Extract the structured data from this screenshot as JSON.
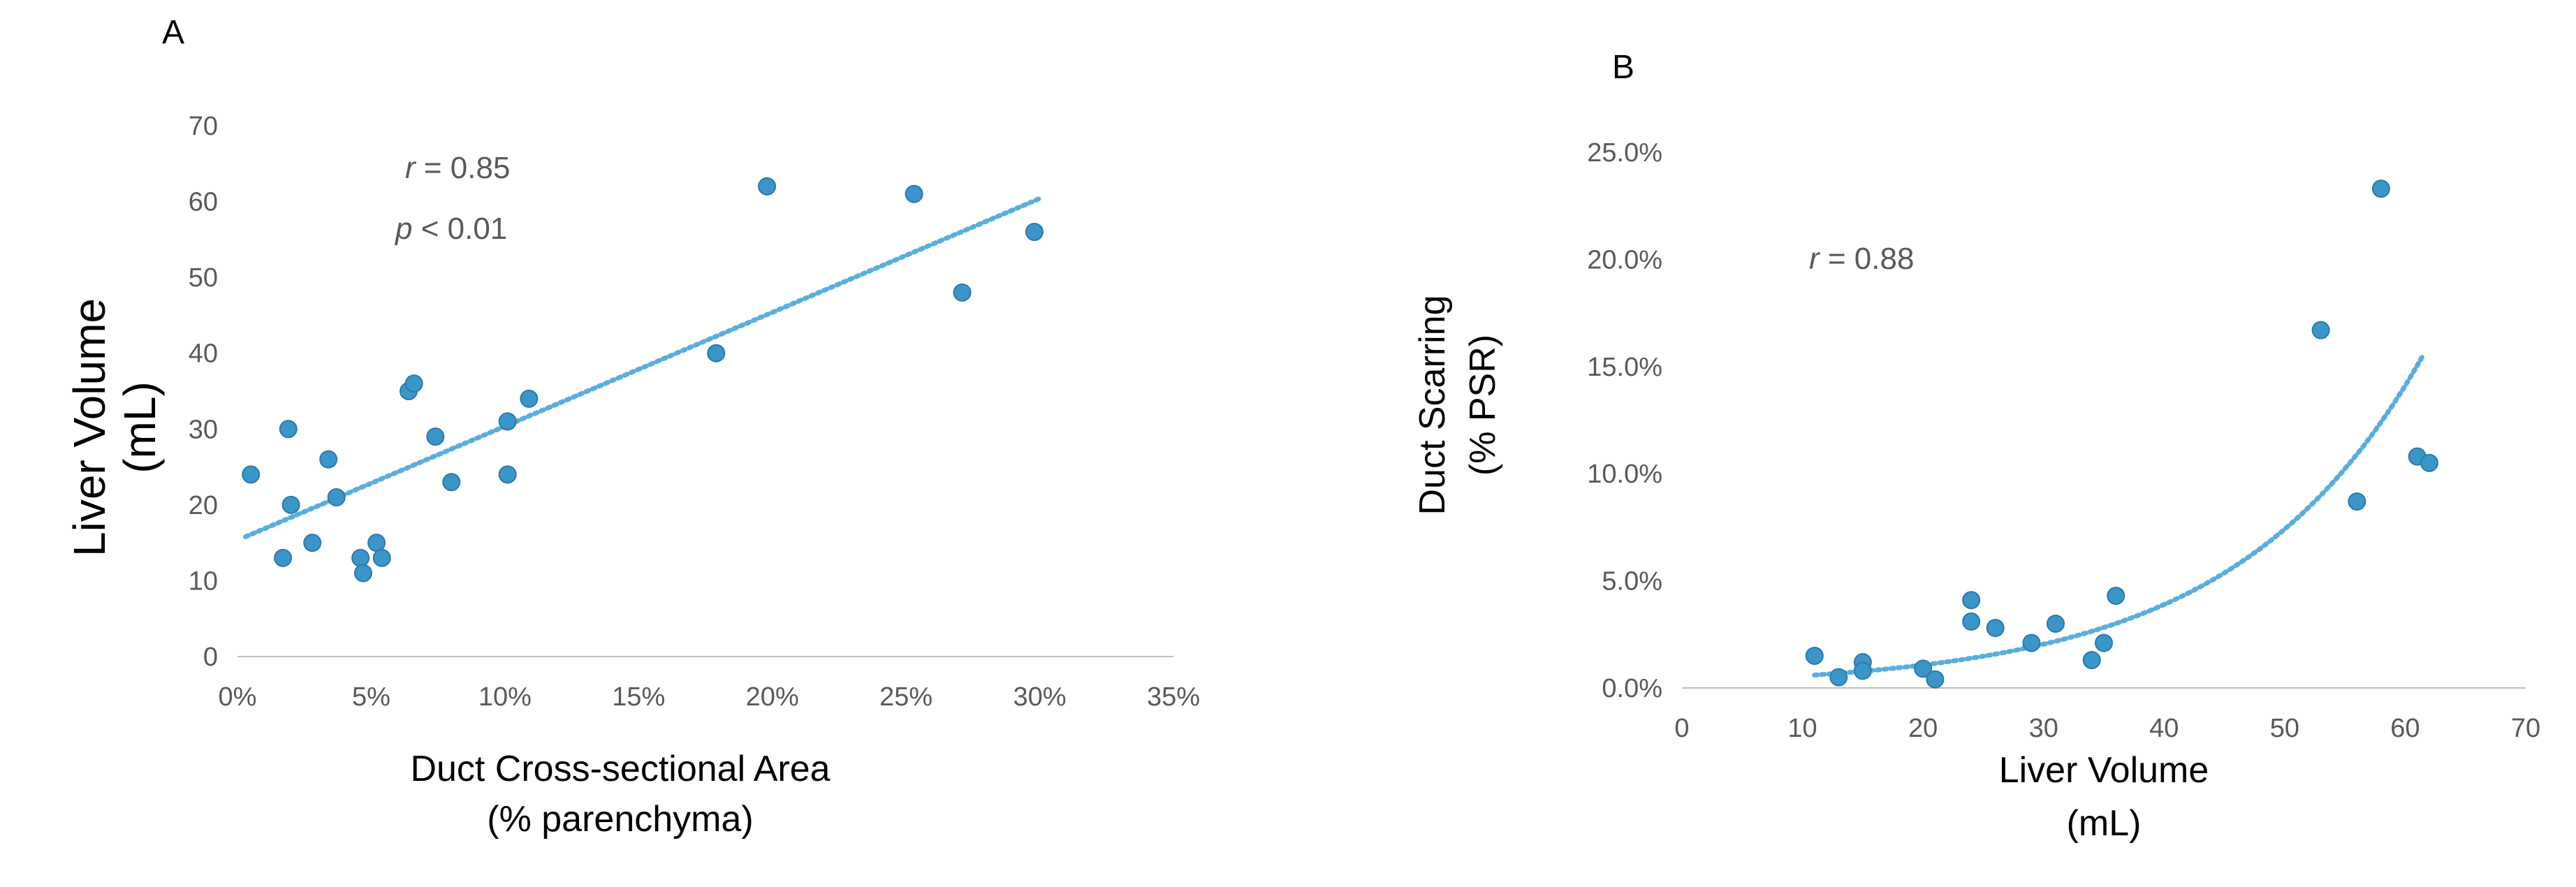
{
  "chart_data": [
    {
      "type": "scatter",
      "panel_label": "A",
      "xlabel_lines": [
        "Duct Cross-sectional Area",
        "(% parenchyma)"
      ],
      "ylabel_lines": [
        "Liver Volume",
        "(mL)"
      ],
      "xlim": [
        0,
        0.35
      ],
      "ylim": [
        0,
        70
      ],
      "xticks": [
        0,
        0.05,
        0.1,
        0.15,
        0.2,
        0.25,
        0.3,
        0.35
      ],
      "xtick_labels": [
        "0%",
        "5%",
        "10%",
        "15%",
        "20%",
        "25%",
        "30%",
        "35%"
      ],
      "yticks": [
        0,
        10,
        20,
        30,
        40,
        50,
        60,
        70
      ],
      "ytick_labels": [
        "0",
        "10",
        "20",
        "30",
        "40",
        "50",
        "60",
        "70"
      ],
      "grid": false,
      "annotation": {
        "line1": {
          "var": "r",
          "text": " = 0.85"
        },
        "line2": {
          "var": "p",
          "text": "  < 0.01"
        }
      },
      "trendline": {
        "type": "linear",
        "style": "dotted",
        "x_start": 0.003,
        "y_start": 15.8,
        "x_end": 0.3,
        "y_end": 60.4
      },
      "points": [
        {
          "x": 0.005,
          "y": 24
        },
        {
          "x": 0.017,
          "y": 13
        },
        {
          "x": 0.019,
          "y": 30
        },
        {
          "x": 0.02,
          "y": 20
        },
        {
          "x": 0.028,
          "y": 15
        },
        {
          "x": 0.034,
          "y": 26
        },
        {
          "x": 0.037,
          "y": 21
        },
        {
          "x": 0.046,
          "y": 13
        },
        {
          "x": 0.047,
          "y": 11
        },
        {
          "x": 0.052,
          "y": 15
        },
        {
          "x": 0.054,
          "y": 13
        },
        {
          "x": 0.064,
          "y": 35
        },
        {
          "x": 0.066,
          "y": 36
        },
        {
          "x": 0.074,
          "y": 29
        },
        {
          "x": 0.08,
          "y": 23
        },
        {
          "x": 0.101,
          "y": 31
        },
        {
          "x": 0.101,
          "y": 24
        },
        {
          "x": 0.109,
          "y": 34
        },
        {
          "x": 0.179,
          "y": 40
        },
        {
          "x": 0.198,
          "y": 62
        },
        {
          "x": 0.253,
          "y": 61
        },
        {
          "x": 0.271,
          "y": 48
        },
        {
          "x": 0.298,
          "y": 56
        }
      ]
    },
    {
      "type": "scatter",
      "panel_label": "B",
      "xlabel_lines": [
        "Liver Volume",
        "(mL)"
      ],
      "ylabel_lines": [
        "Duct Scarring",
        "(% PSR)"
      ],
      "xlim": [
        0,
        70
      ],
      "ylim": [
        0,
        0.25
      ],
      "xticks": [
        0,
        10,
        20,
        30,
        40,
        50,
        60,
        70
      ],
      "xtick_labels": [
        "0",
        "10",
        "20",
        "30",
        "40",
        "50",
        "60",
        "70"
      ],
      "yticks": [
        0,
        0.05,
        0.1,
        0.15,
        0.2,
        0.25
      ],
      "ytick_labels": [
        "0.0%",
        "5.0%",
        "10.0%",
        "15.0%",
        "20.0%",
        "25.0%"
      ],
      "grid": false,
      "annotation": {
        "line1": {
          "var": "r",
          "text": " = 0.88"
        }
      },
      "trendline": {
        "type": "exponential",
        "style": "dotted",
        "x_start": 11,
        "x_end": 61.5,
        "a": 0.00296,
        "b": 0.0644
      },
      "points": [
        {
          "x": 11,
          "y": 0.015
        },
        {
          "x": 13,
          "y": 0.005
        },
        {
          "x": 15,
          "y": 0.012
        },
        {
          "x": 15,
          "y": 0.008
        },
        {
          "x": 20,
          "y": 0.009
        },
        {
          "x": 21,
          "y": 0.004
        },
        {
          "x": 24,
          "y": 0.041
        },
        {
          "x": 24,
          "y": 0.031
        },
        {
          "x": 26,
          "y": 0.028
        },
        {
          "x": 29,
          "y": 0.021
        },
        {
          "x": 31,
          "y": 0.03
        },
        {
          "x": 34,
          "y": 0.013
        },
        {
          "x": 35,
          "y": 0.021
        },
        {
          "x": 36,
          "y": 0.043
        },
        {
          "x": 53,
          "y": 0.167
        },
        {
          "x": 56,
          "y": 0.087
        },
        {
          "x": 58,
          "y": 0.233
        },
        {
          "x": 61,
          "y": 0.108
        },
        {
          "x": 62,
          "y": 0.105
        }
      ]
    }
  ],
  "colors": {
    "marker": "#3a95c9",
    "marker_edge": "#2a7aab",
    "trend": "#5aaedc",
    "axis": "#bfbfbf"
  }
}
